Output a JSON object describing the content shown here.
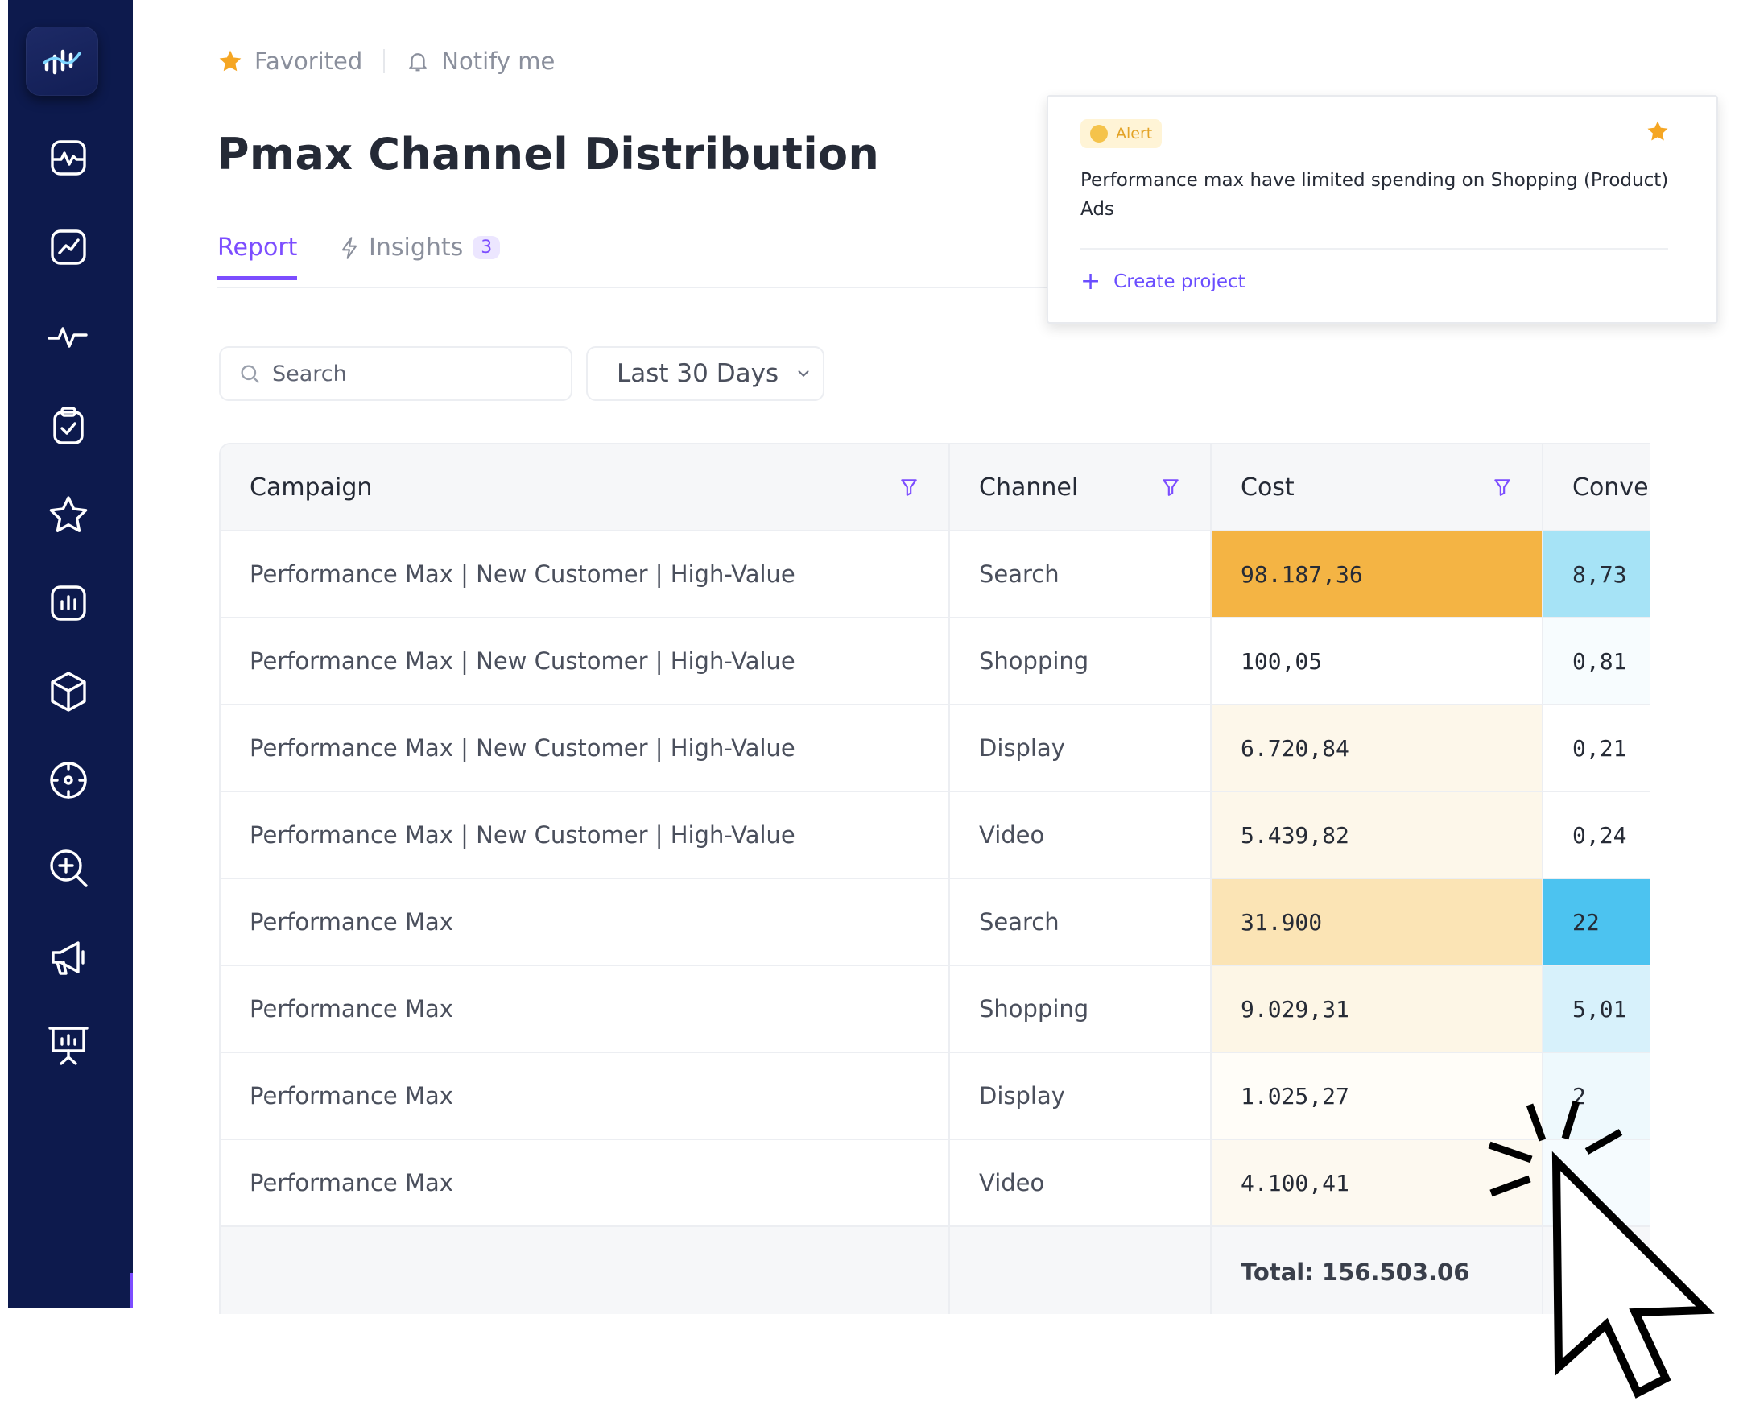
{
  "header": {
    "favorited_label": "Favorited",
    "notify_label": "Notify me"
  },
  "page": {
    "title": "Pmax Channel Distribution"
  },
  "tabs": [
    {
      "label": "Report",
      "active": true
    },
    {
      "label": "Insights",
      "badge": "3"
    }
  ],
  "filters": {
    "search_placeholder": "Search",
    "date_range": "Last 30 Days"
  },
  "table": {
    "columns": [
      "Campaign",
      "Channel",
      "Cost",
      "Conver"
    ],
    "rows": [
      {
        "campaign": "Performance Max | New Customer | High-Value",
        "channel": "Search",
        "cost": "98.187,36",
        "conv": "8,73",
        "cost_color": "#f4b444",
        "conv_color": "#a6e3f6"
      },
      {
        "campaign": "Performance Max | New Customer | High-Value",
        "channel": "Shopping",
        "cost": "100,05",
        "conv": "0,81",
        "cost_color": "#ffffff",
        "conv_color": "#f7fcfe"
      },
      {
        "campaign": "Performance Max | New Customer | High-Value",
        "channel": "Display",
        "cost": "6.720,84",
        "conv": "0,21",
        "cost_color": "#fdf7ea",
        "conv_color": "#ffffff"
      },
      {
        "campaign": "Performance Max | New Customer | High-Value",
        "channel": "Video",
        "cost": "5.439,82",
        "conv": "0,24",
        "cost_color": "#fdf7ea",
        "conv_color": "#ffffff"
      },
      {
        "campaign": "Performance Max",
        "channel": "Search",
        "cost": "31.900",
        "conv": "22",
        "cost_color": "#fbe4b5",
        "conv_color": "#4cc3f0"
      },
      {
        "campaign": "Performance Max",
        "channel": "Shopping",
        "cost": "9.029,31",
        "conv": "5,01",
        "cost_color": "#fdf6e6",
        "conv_color": "#d7f1fb"
      },
      {
        "campaign": "Performance Max",
        "channel": "Display",
        "cost": "1.025,27",
        "conv": "2",
        "cost_color": "#fffdf8",
        "conv_color": "#eef9fd"
      },
      {
        "campaign": "Performance Max",
        "channel": "Video",
        "cost": "4.100,41",
        "conv": "",
        "cost_color": "#fdf9f0",
        "conv_color": "#f5fbfe"
      }
    ],
    "total_label": "Total: 156.503.06"
  },
  "alert": {
    "badge": "Alert",
    "message": "Performance max have limited spending on Shopping (Product) Ads",
    "action": "Create project"
  },
  "colors": {
    "sidebar": "#0d1a4d",
    "accent": "#7c4dff",
    "star": "#f5a623"
  },
  "sidebar": {
    "icons": [
      "pulse-card-icon",
      "trend-chart-icon",
      "activity-icon",
      "clipboard-check-icon",
      "star-icon",
      "bar-chart-icon",
      "cube-icon",
      "target-icon",
      "zoom-in-icon",
      "megaphone-icon",
      "presentation-icon"
    ]
  }
}
